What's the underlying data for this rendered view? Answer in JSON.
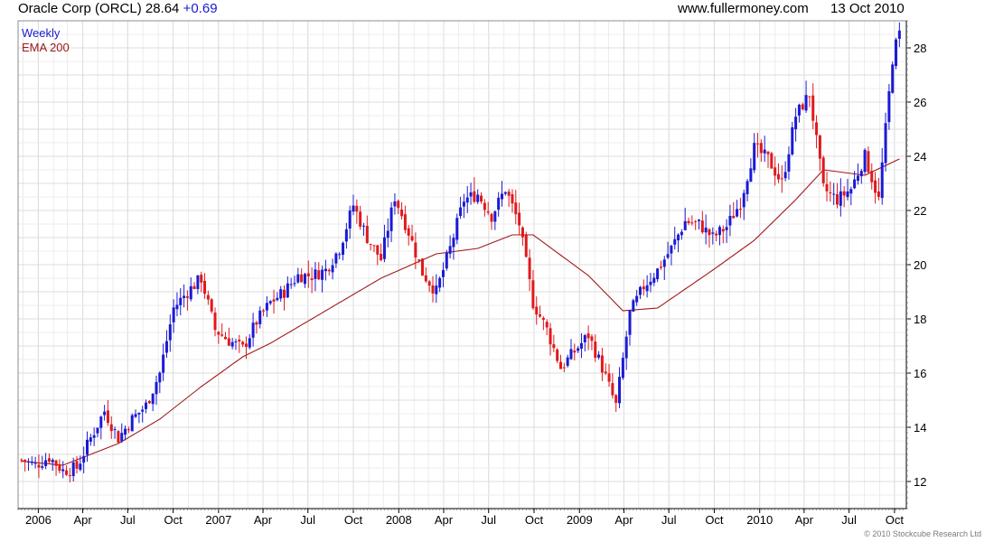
{
  "header": {
    "title": "Oracle Corp (ORCL) 28.64",
    "change": "+0.69",
    "website": "www.fullermoney.com",
    "date": "13 Oct 2010"
  },
  "legend": {
    "series1": "Weekly",
    "series2": "EMA 200"
  },
  "copyright": "© 2010 Stockcube Research Ltd",
  "colors": {
    "up": "#1a1ad4",
    "down": "#e0191c",
    "ema": "#a0191b",
    "grid": "#dcdcdc",
    "axis": "#000000"
  },
  "chart_data": {
    "type": "candlestick",
    "frequency": "weekly",
    "ylim": [
      11,
      29
    ],
    "y_ticks": [
      12,
      14,
      16,
      18,
      20,
      22,
      24,
      26,
      28
    ],
    "y_axis_position": "right",
    "x_tick_labels": [
      "2006",
      "Apr",
      "Jul",
      "Oct",
      "2007",
      "Apr",
      "Jul",
      "Oct",
      "2008",
      "Apr",
      "Jul",
      "Oct",
      "2009",
      "Apr",
      "Jul",
      "Oct",
      "2010",
      "Apr",
      "Jul",
      "Oct"
    ],
    "grid": true,
    "legend_position": "top-left",
    "price_anchors": [
      [
        "2005-11-28",
        12.8
      ],
      [
        "2005-12-26",
        12.6
      ],
      [
        "2006-01-23",
        12.9
      ],
      [
        "2006-02-20",
        12.4
      ],
      [
        "2006-03-20",
        12.5
      ],
      [
        "2006-04-17",
        13.6
      ],
      [
        "2006-05-15",
        14.6
      ],
      [
        "2006-06-12",
        13.6
      ],
      [
        "2006-07-10",
        14.3
      ],
      [
        "2006-08-07",
        14.8
      ],
      [
        "2006-09-04",
        16.0
      ],
      [
        "2006-10-02",
        18.4
      ],
      [
        "2006-10-30",
        19.0
      ],
      [
        "2006-11-27",
        19.5
      ],
      [
        "2006-12-25",
        17.6
      ],
      [
        "2007-01-22",
        17.2
      ],
      [
        "2007-02-19",
        16.9
      ],
      [
        "2007-03-19",
        17.9
      ],
      [
        "2007-04-16",
        18.6
      ],
      [
        "2007-05-14",
        19.0
      ],
      [
        "2007-06-11",
        19.6
      ],
      [
        "2007-07-09",
        19.6
      ],
      [
        "2007-08-06",
        19.8
      ],
      [
        "2007-09-03",
        20.6
      ],
      [
        "2007-10-01",
        22.2
      ],
      [
        "2007-10-29",
        21.0
      ],
      [
        "2007-11-26",
        20.2
      ],
      [
        "2007-12-24",
        22.5
      ],
      [
        "2008-01-21",
        21.2
      ],
      [
        "2008-02-18",
        19.7
      ],
      [
        "2008-03-17",
        19.0
      ],
      [
        "2008-04-14",
        20.6
      ],
      [
        "2008-05-12",
        22.4
      ],
      [
        "2008-06-09",
        22.6
      ],
      [
        "2008-07-07",
        21.8
      ],
      [
        "2008-08-04",
        22.8
      ],
      [
        "2008-09-01",
        21.5
      ],
      [
        "2008-09-29",
        18.6
      ],
      [
        "2008-10-27",
        17.6
      ],
      [
        "2008-11-24",
        16.2
      ],
      [
        "2008-12-22",
        16.8
      ],
      [
        "2009-01-19",
        17.4
      ],
      [
        "2009-02-16",
        16.2
      ],
      [
        "2009-03-16",
        14.8
      ],
      [
        "2009-04-13",
        18.2
      ],
      [
        "2009-05-11",
        19.2
      ],
      [
        "2009-06-08",
        19.8
      ],
      [
        "2009-07-06",
        20.6
      ],
      [
        "2009-08-03",
        21.6
      ],
      [
        "2009-08-31",
        21.5
      ],
      [
        "2009-09-28",
        21.0
      ],
      [
        "2009-10-26",
        21.4
      ],
      [
        "2009-11-23",
        22.3
      ],
      [
        "2009-12-21",
        24.3
      ],
      [
        "2010-01-18",
        23.9
      ],
      [
        "2010-02-15",
        23.0
      ],
      [
        "2010-03-15",
        25.5
      ],
      [
        "2010-04-12",
        26.3
      ],
      [
        "2010-05-10",
        22.8
      ],
      [
        "2010-06-07",
        22.4
      ],
      [
        "2010-07-05",
        22.8
      ],
      [
        "2010-08-02",
        24.0
      ],
      [
        "2010-08-30",
        22.4
      ],
      [
        "2010-09-27",
        27.6
      ],
      [
        "2010-10-11",
        28.64
      ]
    ],
    "ema_anchors": [
      [
        "2005-11-28",
        12.75
      ],
      [
        "2006-02-20",
        12.6
      ],
      [
        "2006-06-12",
        13.4
      ],
      [
        "2006-09-04",
        14.3
      ],
      [
        "2006-11-27",
        15.5
      ],
      [
        "2007-02-19",
        16.6
      ],
      [
        "2007-04-16",
        17.1
      ],
      [
        "2007-08-06",
        18.3
      ],
      [
        "2007-11-26",
        19.5
      ],
      [
        "2008-03-17",
        20.4
      ],
      [
        "2008-06-09",
        20.6
      ],
      [
        "2008-08-18",
        21.1
      ],
      [
        "2008-09-29",
        21.1
      ],
      [
        "2009-01-19",
        19.6
      ],
      [
        "2009-03-30",
        18.3
      ],
      [
        "2009-06-08",
        18.4
      ],
      [
        "2009-09-28",
        19.8
      ],
      [
        "2009-12-21",
        20.9
      ],
      [
        "2010-03-15",
        22.4
      ],
      [
        "2010-05-10",
        23.5
      ],
      [
        "2010-08-02",
        23.3
      ],
      [
        "2010-10-11",
        23.9
      ]
    ]
  }
}
